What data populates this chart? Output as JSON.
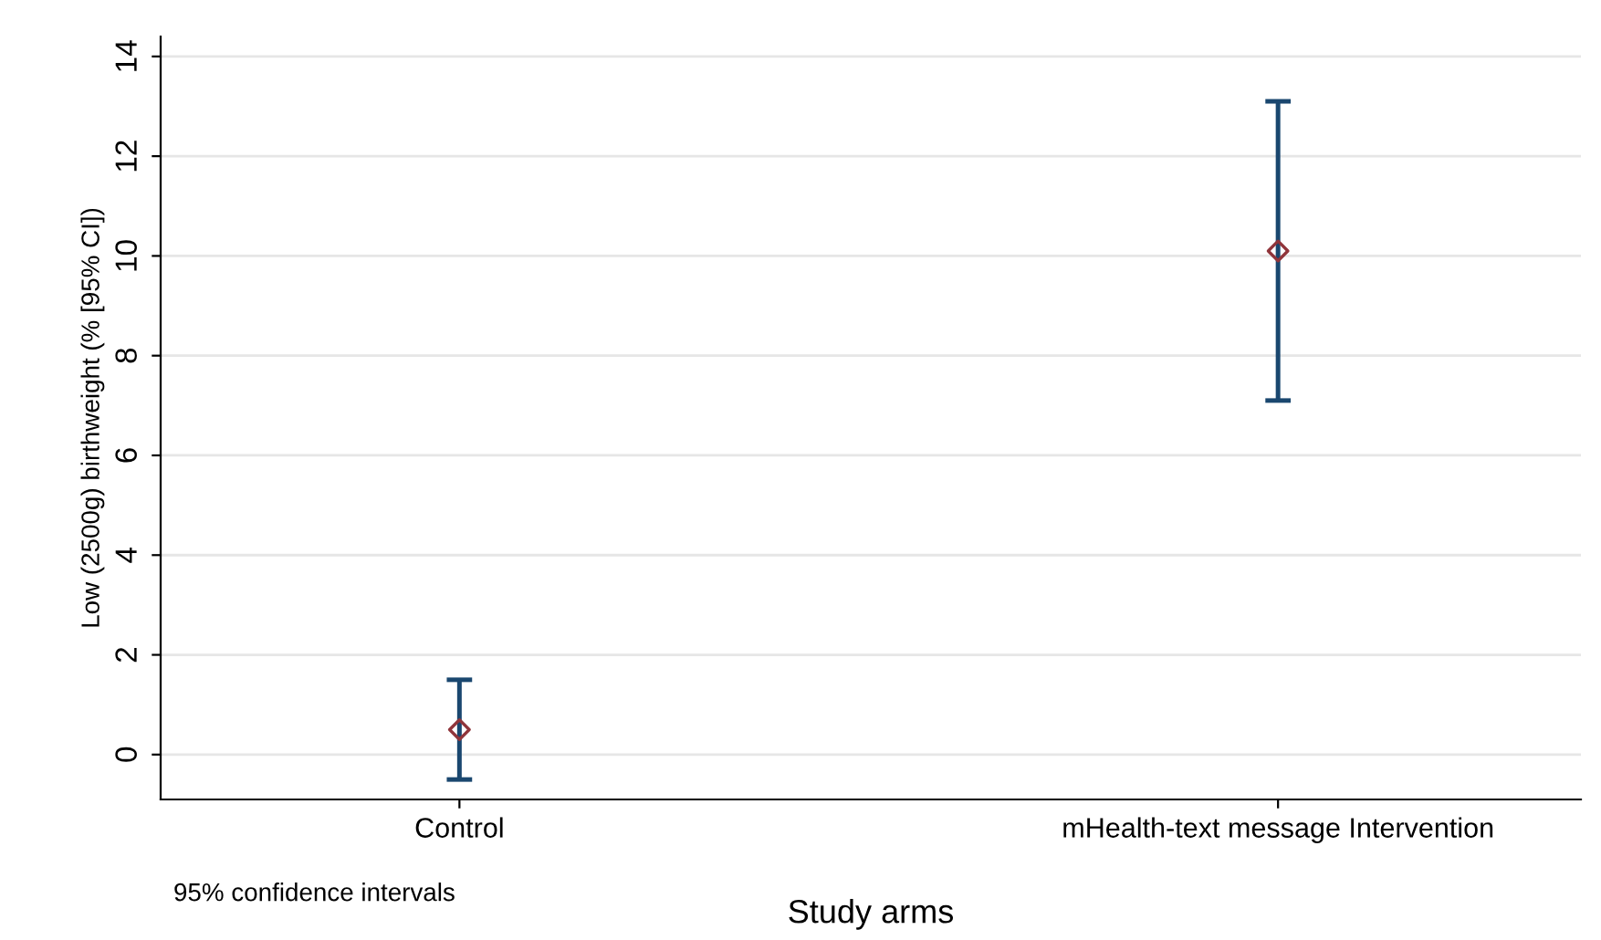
{
  "chart_data": {
    "type": "scatter",
    "xlabel": "Study arms",
    "ylabel": "Low (2500g) birthweight (% [95% CI])",
    "categories": [
      "Control",
      "mHealth-text message Intervention"
    ],
    "series": [
      {
        "color": "#90353b",
        "values": [
          0.5,
          10.1
        ],
        "errors": [
          [
            -0.5,
            1.5
          ],
          [
            7.1,
            13.1
          ]
        ]
      }
    ],
    "ylim": [
      -0.9,
      14.4
    ],
    "yticks": [
      0,
      2,
      4,
      6,
      8,
      10,
      12,
      14
    ],
    "grid": "y",
    "marker": "diamond",
    "annotations": [
      "95% confidence intervals"
    ]
  }
}
